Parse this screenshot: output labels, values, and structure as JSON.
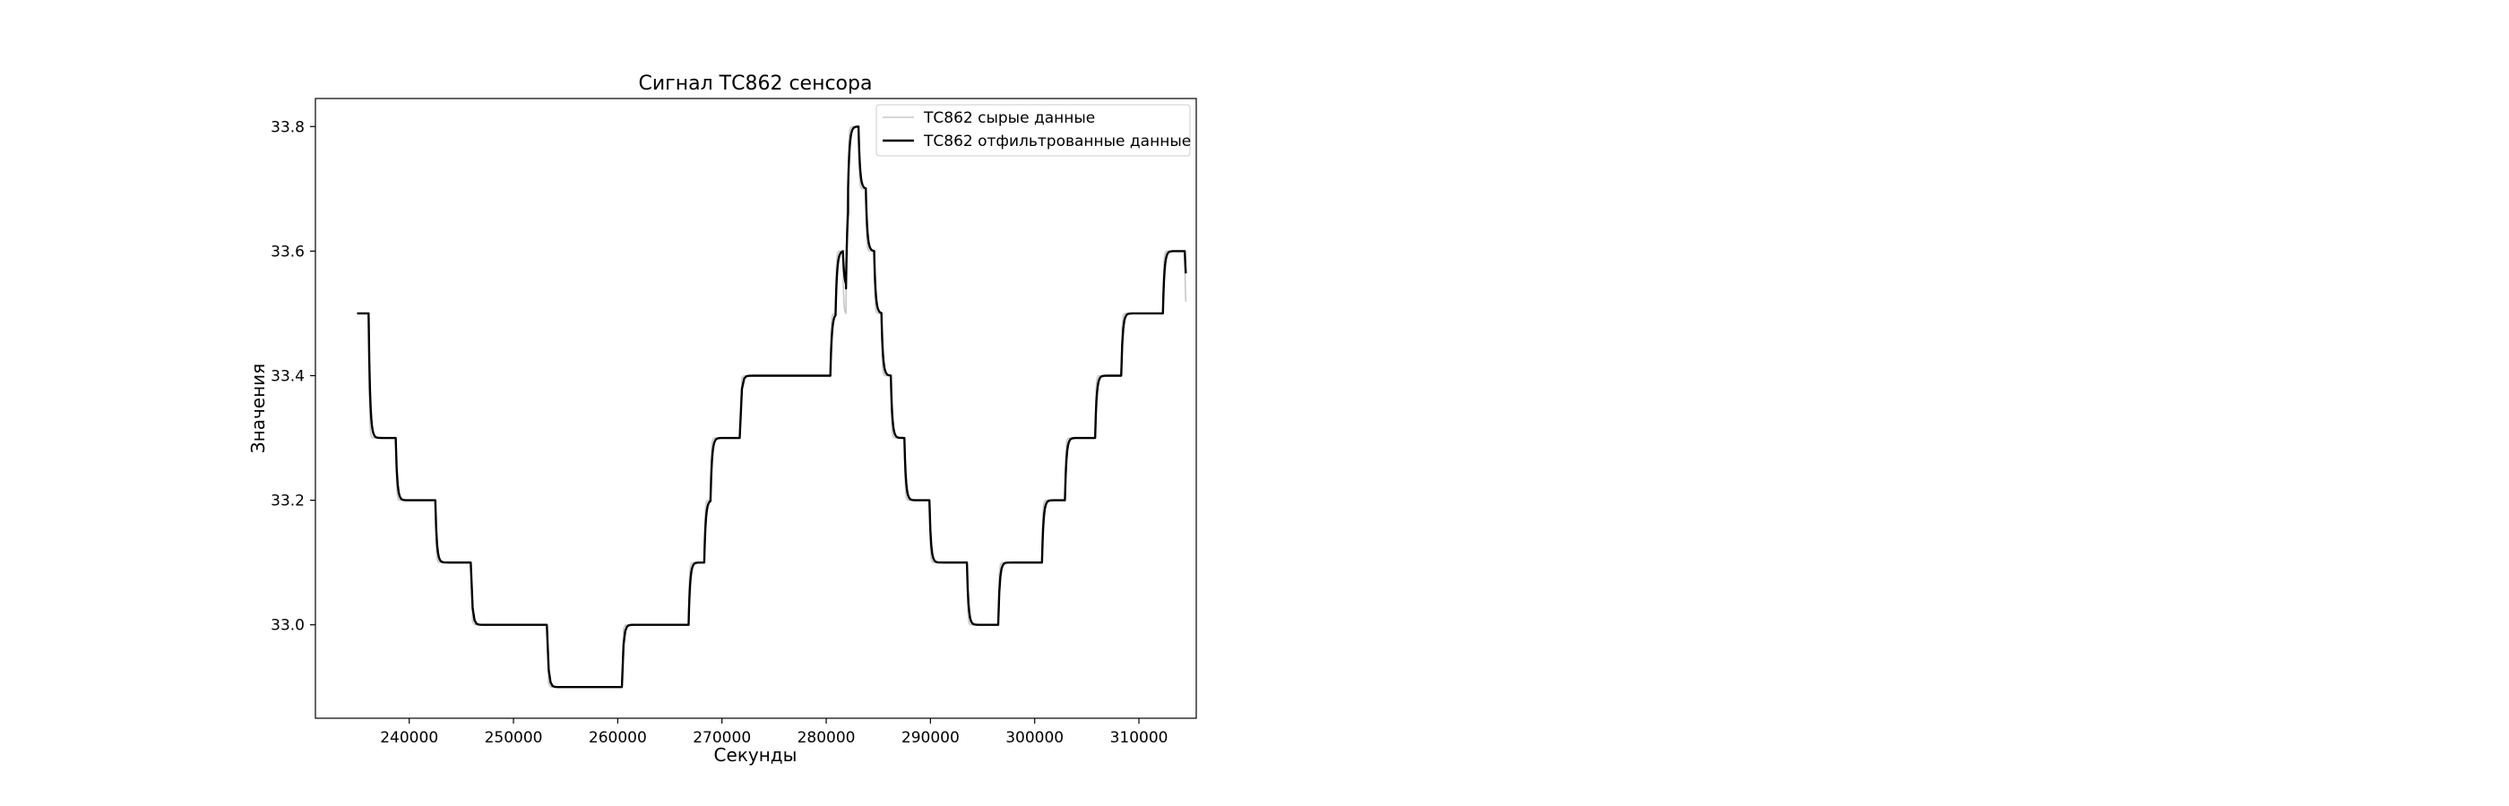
{
  "chart_data": {
    "type": "line",
    "title": "Сигнал ТС862 сенсора",
    "xlabel": "Секунды",
    "ylabel": "Значения",
    "xlim": [
      231000,
      315500
    ],
    "ylim": [
      32.85,
      33.845
    ],
    "x_ticks": [
      240000,
      250000,
      260000,
      270000,
      280000,
      290000,
      300000,
      310000
    ],
    "x_tick_labels": [
      "240000",
      "250000",
      "260000",
      "270000",
      "280000",
      "290000",
      "300000",
      "310000"
    ],
    "y_ticks": [
      33.0,
      33.2,
      33.4,
      33.6,
      33.8
    ],
    "y_tick_labels": [
      "33.0",
      "33.2",
      "33.4",
      "33.6",
      "33.8"
    ],
    "grid": false,
    "legend_position": "top-right",
    "series": [
      {
        "name": "ТС862 сырые данные",
        "color": "#c8c8c8",
        "style": "raw",
        "steps": [
          [
            235000,
            33.5
          ],
          [
            236100,
            33.3
          ],
          [
            238700,
            33.2
          ],
          [
            242500,
            33.1
          ],
          [
            245900,
            33.0
          ],
          [
            253200,
            32.9
          ],
          [
            260400,
            33.0
          ],
          [
            266800,
            33.1
          ],
          [
            268300,
            33.2
          ],
          [
            268900,
            33.3
          ],
          [
            271700,
            33.4
          ],
          [
            280400,
            33.5
          ],
          [
            280900,
            33.6
          ],
          [
            281600,
            33.5
          ],
          [
            281900,
            33.7
          ],
          [
            282100,
            33.8
          ],
          [
            283100,
            33.7
          ],
          [
            283800,
            33.6
          ],
          [
            284600,
            33.5
          ],
          [
            285300,
            33.4
          ],
          [
            286200,
            33.3
          ],
          [
            287500,
            33.2
          ],
          [
            289900,
            33.1
          ],
          [
            293500,
            33.0
          ],
          [
            296500,
            33.1
          ],
          [
            300700,
            33.2
          ],
          [
            302900,
            33.3
          ],
          [
            305800,
            33.4
          ],
          [
            308300,
            33.5
          ],
          [
            312300,
            33.6
          ],
          [
            314400,
            33.5
          ]
        ],
        "x_end": 314500
      },
      {
        "name": "ТС862 отфильтрованные данные",
        "color": "#000000",
        "style": "filtered",
        "steps": [
          [
            235000,
            33.5
          ],
          [
            236100,
            33.3
          ],
          [
            238700,
            33.2
          ],
          [
            242500,
            33.1
          ],
          [
            245900,
            33.0
          ],
          [
            253200,
            32.9
          ],
          [
            260400,
            33.0
          ],
          [
            266800,
            33.1
          ],
          [
            268300,
            33.2
          ],
          [
            268900,
            33.3
          ],
          [
            271700,
            33.4
          ],
          [
            280400,
            33.5
          ],
          [
            280900,
            33.6
          ],
          [
            281600,
            33.54
          ],
          [
            281900,
            33.7
          ],
          [
            282100,
            33.8
          ],
          [
            283100,
            33.7
          ],
          [
            283800,
            33.6
          ],
          [
            284600,
            33.5
          ],
          [
            285300,
            33.4
          ],
          [
            286200,
            33.3
          ],
          [
            287500,
            33.2
          ],
          [
            289900,
            33.1
          ],
          [
            293500,
            33.0
          ],
          [
            296500,
            33.1
          ],
          [
            300700,
            33.2
          ],
          [
            302900,
            33.3
          ],
          [
            305800,
            33.4
          ],
          [
            308300,
            33.5
          ],
          [
            312300,
            33.6
          ],
          [
            314400,
            33.53
          ]
        ],
        "x_end": 314500
      }
    ]
  }
}
